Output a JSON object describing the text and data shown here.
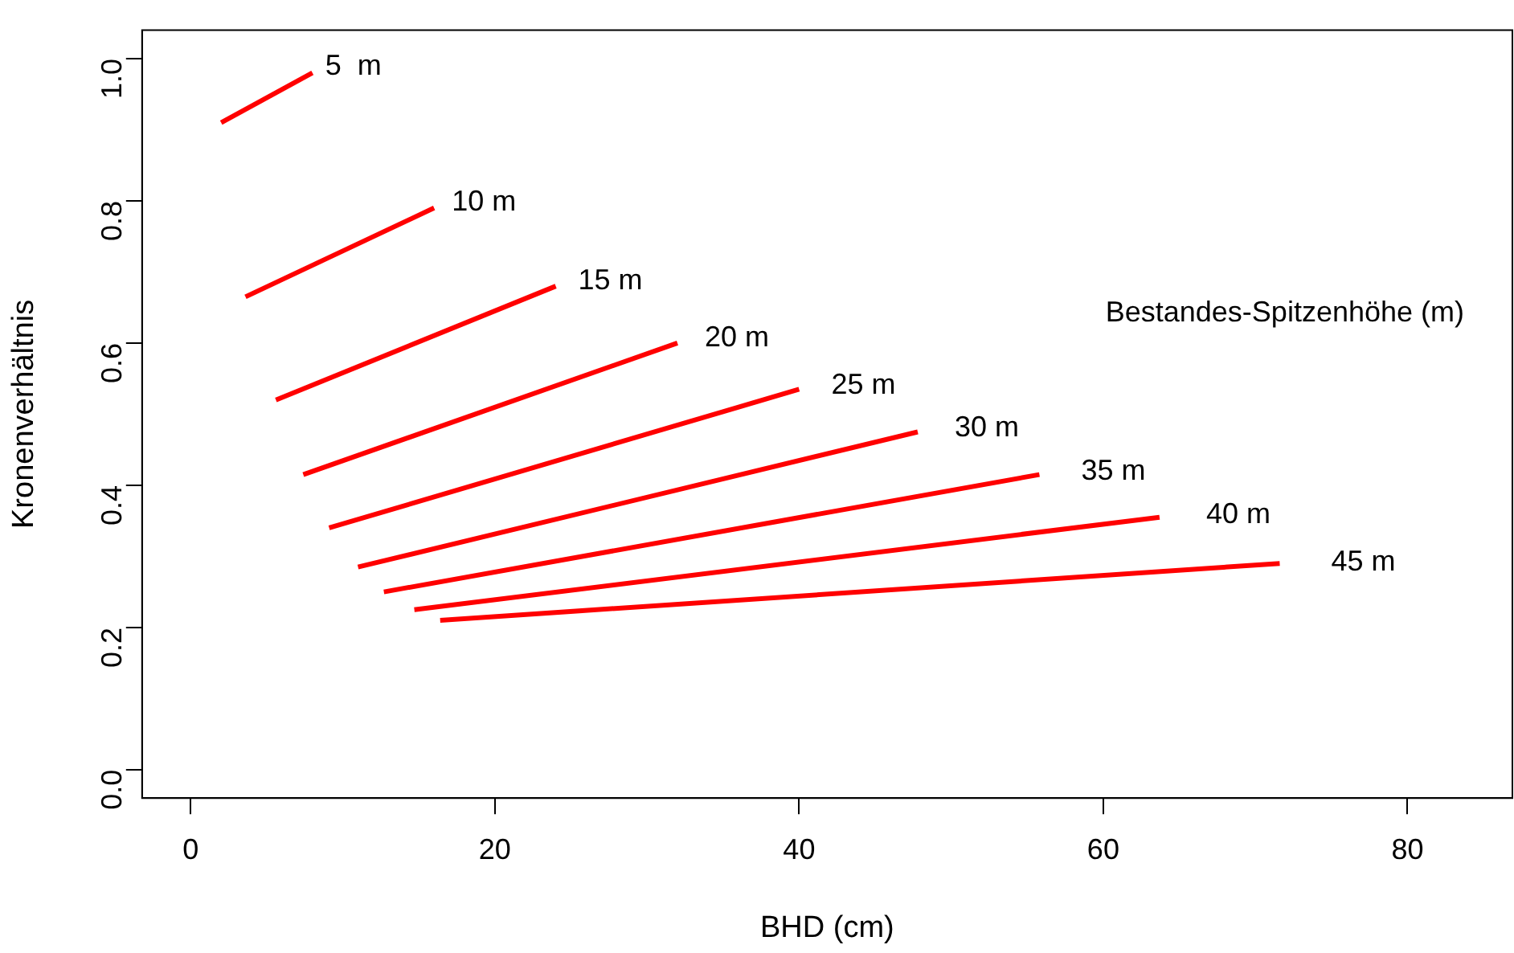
{
  "chart_data": {
    "type": "line",
    "xlabel": "BHD (cm)",
    "ylabel": "Kronenverhältnis",
    "annotations": [
      "Bestandes-Spitzenhöhe (m)"
    ],
    "xlim": [
      -3.2,
      86.9
    ],
    "ylim": [
      -0.04,
      1.04
    ],
    "xticks": [
      0,
      20,
      40,
      60,
      80
    ],
    "yticks": [
      {
        "value": 0,
        "label": "0.0"
      },
      0.2,
      0.4,
      0.6,
      0.8,
      {
        "value": 1,
        "label": "1.0"
      }
    ],
    "grid": false,
    "legend": false,
    "marker": "none",
    "line_style": "solid",
    "series": [
      {
        "name": "5  m",
        "color": "#ff0000",
        "x": [
          2,
          8
        ],
        "values": [
          0.91,
          0.98
        ]
      },
      {
        "name": "10 m",
        "color": "#ff0000",
        "x": [
          3.6,
          16
        ],
        "values": [
          0.665,
          0.79
        ]
      },
      {
        "name": "15 m",
        "color": "#ff0000",
        "x": [
          5.6,
          24
        ],
        "values": [
          0.52,
          0.68
        ]
      },
      {
        "name": "20 m",
        "color": "#ff0000",
        "x": [
          7.4,
          32
        ],
        "values": [
          0.415,
          0.6
        ]
      },
      {
        "name": "25 m",
        "color": "#ff0000",
        "x": [
          9.1,
          40
        ],
        "values": [
          0.34,
          0.535
        ]
      },
      {
        "name": "30 m",
        "color": "#ff0000",
        "x": [
          11,
          47.8
        ],
        "values": [
          0.285,
          0.475
        ]
      },
      {
        "name": "35 m",
        "color": "#ff0000",
        "x": [
          12.7,
          55.8
        ],
        "values": [
          0.25,
          0.415
        ]
      },
      {
        "name": "40 m",
        "color": "#ff0000",
        "x": [
          14.7,
          63.7
        ],
        "values": [
          0.225,
          0.355
        ]
      },
      {
        "name": "45 m",
        "color": "#ff0000",
        "x": [
          16.4,
          71.6
        ],
        "values": [
          0.21,
          0.29
        ]
      }
    ]
  }
}
